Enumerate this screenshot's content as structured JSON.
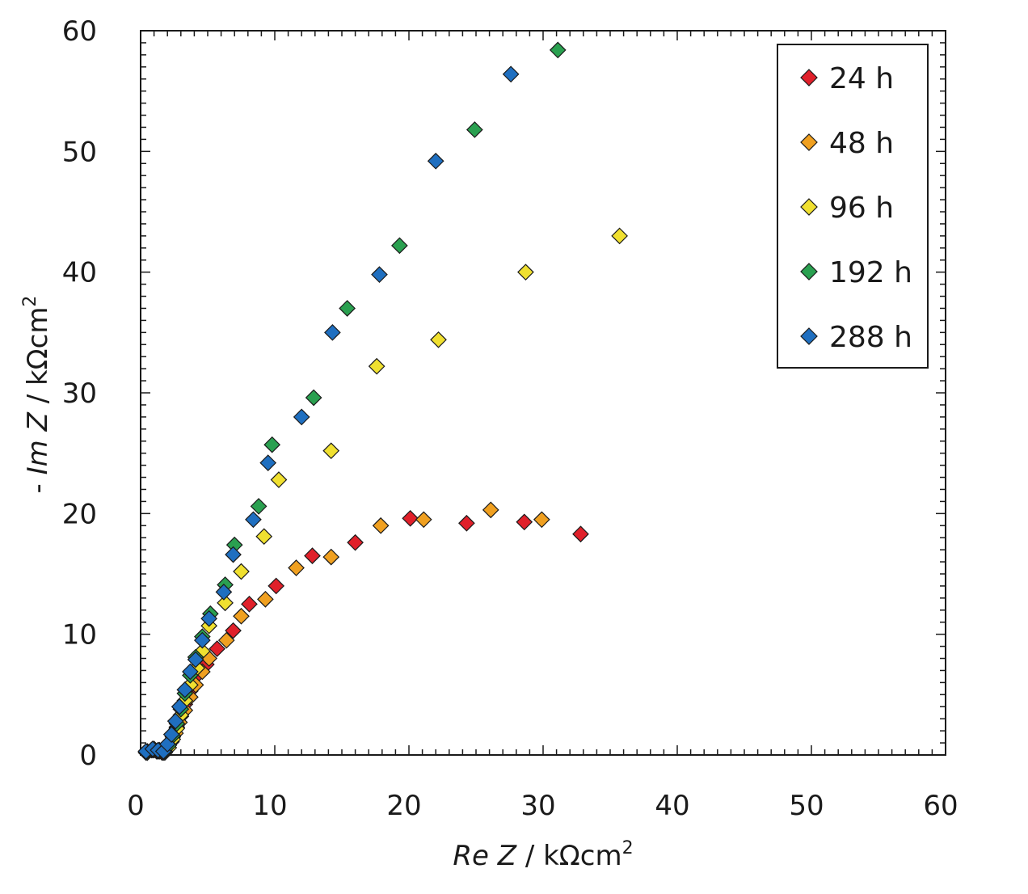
{
  "chart_data": {
    "type": "scatter",
    "x_axis": {
      "label_italic": "Re Z",
      "label_rest": " / kΩcm",
      "label_sup": "2",
      "range": [
        0,
        60
      ],
      "ticks": [
        0,
        10,
        20,
        30,
        40,
        50,
        60
      ],
      "tick_labels": [
        "0",
        "10",
        "20",
        "30",
        "40",
        "50",
        "60"
      ]
    },
    "y_axis": {
      "label_prefix": "- ",
      "label_italic": "Im Z",
      "label_rest": " / kΩcm",
      "label_sup": "2",
      "range": [
        0,
        60
      ],
      "ticks": [
        0,
        10,
        20,
        30,
        40,
        50,
        60
      ],
      "tick_labels": [
        "0",
        "10",
        "20",
        "30",
        "40",
        "50",
        "60"
      ]
    },
    "grid": false,
    "legend_position": "top-right",
    "marker": "diamond",
    "series": [
      {
        "name": "24 h",
        "color": "#e0202a",
        "points": [
          [
            0.4,
            0.2
          ],
          [
            0.8,
            0.4
          ],
          [
            1.2,
            0.3
          ],
          [
            1.6,
            0.2
          ],
          [
            1.9,
            0.4
          ],
          [
            2.1,
            0.9
          ],
          [
            2.4,
            1.5
          ],
          [
            2.7,
            2.3
          ],
          [
            3.0,
            3.2
          ],
          [
            3.3,
            4.2
          ],
          [
            3.7,
            5.3
          ],
          [
            4.2,
            6.6
          ],
          [
            4.9,
            7.5
          ],
          [
            5.7,
            8.8
          ],
          [
            6.9,
            10.3
          ],
          [
            8.1,
            12.5
          ],
          [
            10.1,
            14.0
          ],
          [
            12.8,
            16.5
          ],
          [
            16.0,
            17.6
          ],
          [
            20.1,
            19.6
          ],
          [
            24.3,
            19.2
          ],
          [
            28.6,
            19.3
          ],
          [
            32.8,
            18.3
          ]
        ]
      },
      {
        "name": "48 h",
        "color": "#f0a020",
        "points": [
          [
            0.5,
            0.2
          ],
          [
            0.9,
            0.4
          ],
          [
            1.3,
            0.3
          ],
          [
            1.7,
            0.2
          ],
          [
            2.0,
            0.5
          ],
          [
            2.3,
            1.1
          ],
          [
            2.6,
            1.8
          ],
          [
            2.9,
            2.7
          ],
          [
            3.3,
            3.7
          ],
          [
            3.7,
            4.8
          ],
          [
            4.1,
            5.8
          ],
          [
            4.6,
            6.9
          ],
          [
            5.1,
            8.0
          ],
          [
            6.4,
            9.5
          ],
          [
            7.5,
            11.5
          ],
          [
            9.3,
            12.9
          ],
          [
            11.6,
            15.5
          ],
          [
            14.2,
            16.4
          ],
          [
            17.9,
            19.0
          ],
          [
            21.1,
            19.5
          ],
          [
            26.1,
            20.3
          ],
          [
            29.9,
            19.5
          ]
        ]
      },
      {
        "name": "96 h",
        "color": "#f0e030",
        "points": [
          [
            0.5,
            0.2
          ],
          [
            1.0,
            0.4
          ],
          [
            1.4,
            0.3
          ],
          [
            1.8,
            0.2
          ],
          [
            2.1,
            0.6
          ],
          [
            2.4,
            1.3
          ],
          [
            2.7,
            2.2
          ],
          [
            3.0,
            3.3
          ],
          [
            3.3,
            4.5
          ],
          [
            3.7,
            5.8
          ],
          [
            4.2,
            7.2
          ],
          [
            4.6,
            8.6
          ],
          [
            5.1,
            10.7
          ],
          [
            6.3,
            12.6
          ],
          [
            7.5,
            15.2
          ],
          [
            9.2,
            18.1
          ],
          [
            10.3,
            22.8
          ],
          [
            14.2,
            25.2
          ],
          [
            17.6,
            32.2
          ],
          [
            22.2,
            34.4
          ],
          [
            28.7,
            40.0
          ],
          [
            35.7,
            43.0
          ]
        ]
      },
      {
        "name": "192 h",
        "color": "#2aa050",
        "points": [
          [
            0.5,
            0.3
          ],
          [
            1.0,
            0.5
          ],
          [
            1.4,
            0.4
          ],
          [
            1.8,
            0.3
          ],
          [
            2.1,
            0.8
          ],
          [
            2.4,
            1.6
          ],
          [
            2.7,
            2.6
          ],
          [
            3.0,
            3.8
          ],
          [
            3.3,
            5.1
          ],
          [
            3.7,
            6.6
          ],
          [
            4.1,
            8.1
          ],
          [
            4.6,
            9.8
          ],
          [
            5.2,
            11.7
          ],
          [
            6.3,
            14.1
          ],
          [
            7.0,
            17.4
          ],
          [
            8.8,
            20.6
          ],
          [
            9.8,
            25.7
          ],
          [
            12.9,
            29.6
          ],
          [
            15.4,
            37.0
          ],
          [
            19.3,
            42.2
          ],
          [
            24.9,
            51.8
          ],
          [
            31.1,
            58.4
          ]
        ]
      },
      {
        "name": "288 h",
        "color": "#1f6fc0",
        "points": [
          [
            0.4,
            0.3
          ],
          [
            0.9,
            0.5
          ],
          [
            1.3,
            0.4
          ],
          [
            1.7,
            0.3
          ],
          [
            2.0,
            0.9
          ],
          [
            2.3,
            1.7
          ],
          [
            2.6,
            2.8
          ],
          [
            2.9,
            4.0
          ],
          [
            3.3,
            5.4
          ],
          [
            3.7,
            6.9
          ],
          [
            4.1,
            7.9
          ],
          [
            4.6,
            9.5
          ],
          [
            5.1,
            11.3
          ],
          [
            6.2,
            13.5
          ],
          [
            6.9,
            16.6
          ],
          [
            8.4,
            19.5
          ],
          [
            9.5,
            24.2
          ],
          [
            12.0,
            28.0
          ],
          [
            14.3,
            35.0
          ],
          [
            17.8,
            39.8
          ],
          [
            22.0,
            49.2
          ],
          [
            27.6,
            56.4
          ]
        ]
      }
    ]
  }
}
